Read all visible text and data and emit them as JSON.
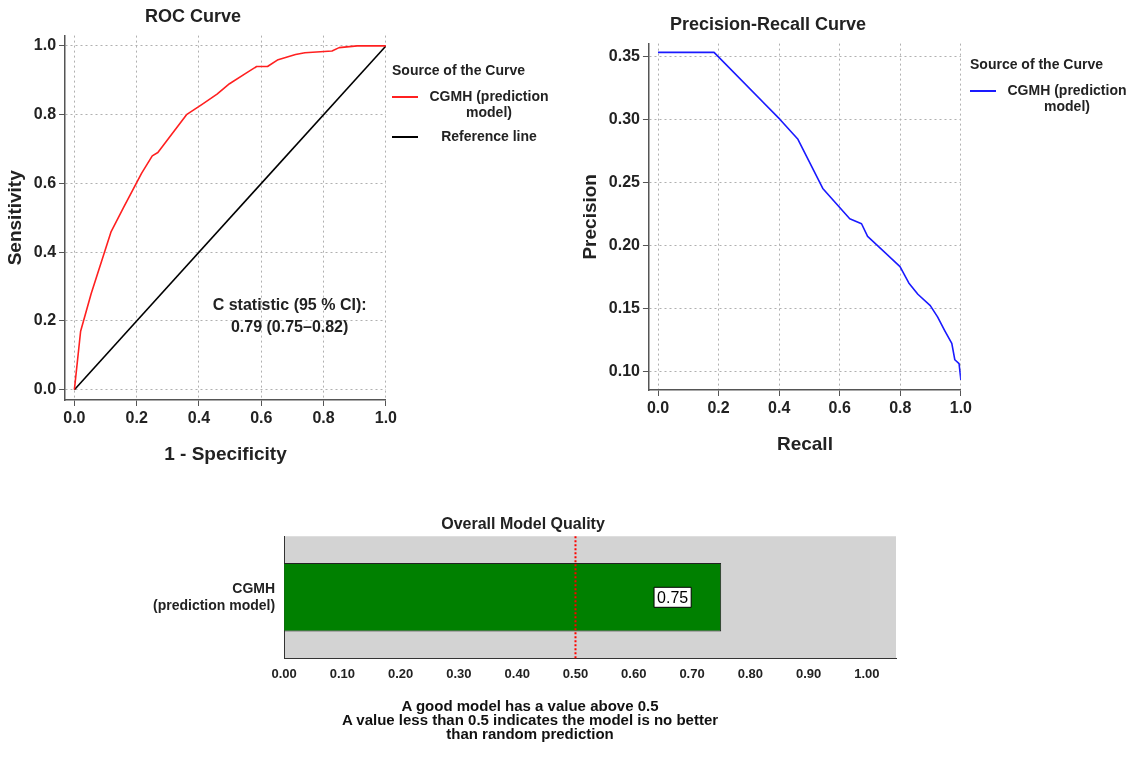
{
  "chart_data": [
    {
      "type": "line",
      "title": "ROC Curve",
      "xlabel": "1 - Specificity",
      "ylabel": "Sensitivity",
      "legend_title": "Source of the Curve",
      "legend": "right",
      "grid": true,
      "marker": "none",
      "xlim": [
        -0.03,
        1.0
      ],
      "ylim": [
        -0.03,
        1.03
      ],
      "xticks": [
        {
          "value": 0,
          "label": "0.0"
        },
        {
          "value": 0.2,
          "label": "0.2"
        },
        {
          "value": 0.4,
          "label": "0.4"
        },
        {
          "value": 0.6,
          "label": "0.6"
        },
        {
          "value": 0.8,
          "label": "0.8"
        },
        {
          "value": 1,
          "label": "1.0"
        }
      ],
      "yticks": [
        {
          "value": 0,
          "label": "0.0"
        },
        {
          "value": 0.2,
          "label": "0.2"
        },
        {
          "value": 0.4,
          "label": "0.4"
        },
        {
          "value": 0.6,
          "label": "0.6"
        },
        {
          "value": 0.8,
          "label": "0.8"
        },
        {
          "value": 1,
          "label": "1.0"
        }
      ],
      "series": [
        {
          "name": "CGMH (prediction model)",
          "color": "#ff2020",
          "x": [
            0,
            0.02,
            0.054,
            0.118,
            0.158,
            0.216,
            0.25,
            0.268,
            0.36,
            0.41,
            0.458,
            0.498,
            0.55,
            0.585,
            0.62,
            0.654,
            0.71,
            0.74,
            0.827,
            0.85,
            0.908,
            1.0
          ],
          "values": [
            0,
            0.17,
            0.28,
            0.46,
            0.53,
            0.63,
            0.68,
            0.69,
            0.8,
            0.83,
            0.86,
            0.89,
            0.92,
            0.94,
            0.94,
            0.96,
            0.975,
            0.98,
            0.985,
            0.995,
            1.0,
            1.0
          ]
        },
        {
          "name": "Reference line",
          "color": "#000000",
          "x": [
            0,
            1
          ],
          "values": [
            0,
            1
          ]
        }
      ],
      "annotations": [
        "C statistic (95 % CI):",
        "0.79 (0.75–0.82)"
      ]
    },
    {
      "type": "line",
      "title": "Precision-Recall Curve",
      "xlabel": "Recall",
      "ylabel": "Precision",
      "legend_title": "Source of the Curve",
      "legend": "right",
      "grid": true,
      "marker": "none",
      "xlim": [
        -0.03,
        1.0
      ],
      "ylim": [
        0.085,
        0.36
      ],
      "xticks": [
        {
          "value": 0,
          "label": "0.0"
        },
        {
          "value": 0.2,
          "label": "0.2"
        },
        {
          "value": 0.4,
          "label": "0.4"
        },
        {
          "value": 0.6,
          "label": "0.6"
        },
        {
          "value": 0.8,
          "label": "0.8"
        },
        {
          "value": 1,
          "label": "1.0"
        }
      ],
      "yticks": [
        {
          "value": 0.1,
          "label": "0.10"
        },
        0.15,
        {
          "value": 0.2,
          "label": "0.20"
        },
        0.25,
        {
          "value": 0.3,
          "label": "0.30"
        },
        0.35
      ],
      "series": [
        {
          "name": "CGMH (prediction model)",
          "color": "#1a1aff",
          "x": [
            0,
            0.185,
            0.402,
            0.462,
            0.544,
            0.633,
            0.672,
            0.692,
            0.799,
            0.828,
            0.858,
            0.899,
            0.923,
            0.947,
            0.97,
            0.98,
            0.994,
            1.0
          ],
          "values": [
            0.353,
            0.353,
            0.3,
            0.284,
            0.245,
            0.221,
            0.217,
            0.207,
            0.183,
            0.17,
            0.161,
            0.152,
            0.143,
            0.132,
            0.122,
            0.109,
            0.106,
            0.093
          ]
        }
      ]
    },
    {
      "type": "bar",
      "orientation": "horizontal",
      "title": "Overall Model Quality",
      "categories": [
        "CGMH (prediction model)"
      ],
      "values": [
        0.75
      ],
      "color": "#008000",
      "value_labels": [
        "0.75"
      ],
      "xlim": [
        0,
        1.05
      ],
      "xticks": [
        {
          "value": 0,
          "label": "0.00"
        },
        {
          "value": 0.1,
          "label": "0.10"
        },
        {
          "value": 0.2,
          "label": "0.20"
        },
        {
          "value": 0.3,
          "label": "0.30"
        },
        {
          "value": 0.4,
          "label": "0.40"
        },
        {
          "value": 0.5,
          "label": "0.50"
        },
        {
          "value": 0.6,
          "label": "0.60"
        },
        {
          "value": 0.7,
          "label": "0.70"
        },
        {
          "value": 0.8,
          "label": "0.80"
        },
        {
          "value": 0.9,
          "label": "0.90"
        },
        {
          "value": 1,
          "label": "1.00"
        }
      ],
      "ref_lines": [
        {
          "axis": "x",
          "value": 0.5,
          "color": "#ff0000",
          "line_style": "dotted"
        }
      ],
      "annotations": [
        "A good model has a value above 0.5",
        "A value less than 0.5 indicates the model is no better",
        "than random prediction"
      ]
    }
  ]
}
